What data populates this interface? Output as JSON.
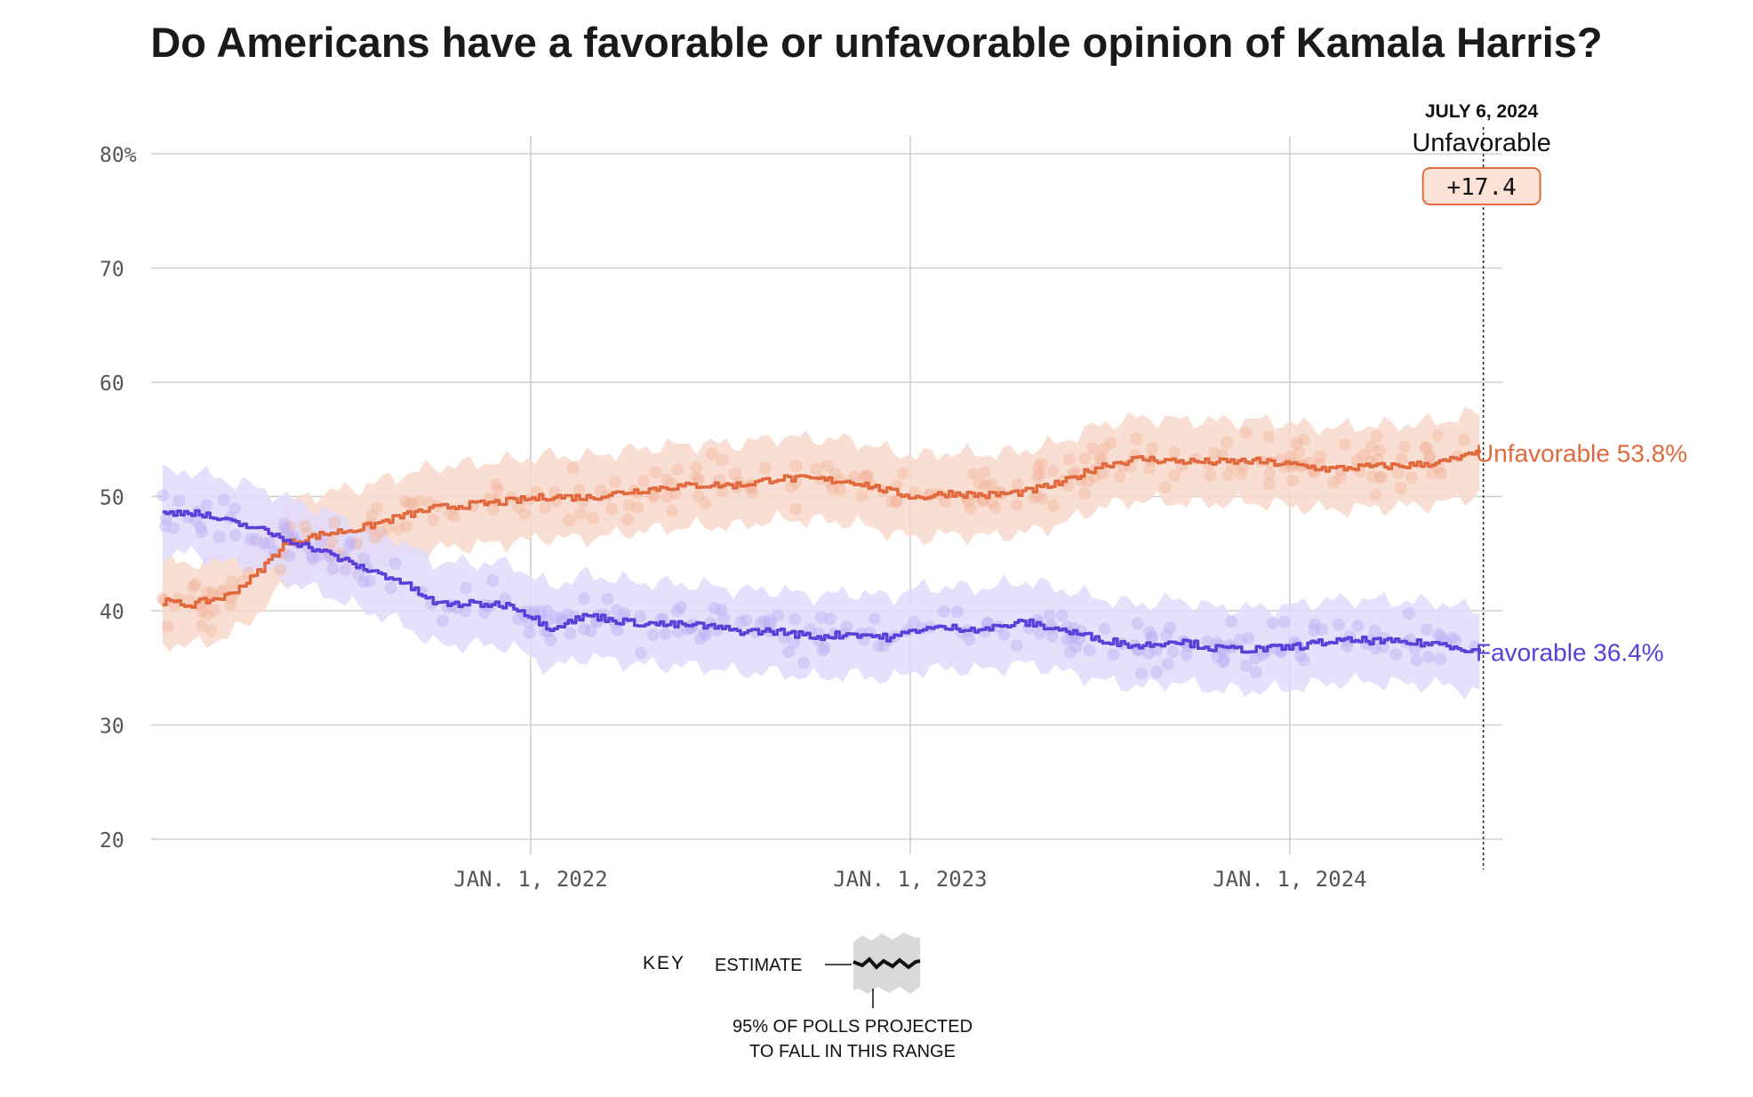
{
  "chart_data": {
    "type": "line",
    "title": "Do Americans have a favorable or unfavorable opinion of Kamala Harris?",
    "ylim": [
      20,
      80
    ],
    "yticks": [
      {
        "value": 80,
        "label": "80%"
      },
      {
        "value": 70,
        "label": "70"
      },
      {
        "value": 60,
        "label": "60"
      },
      {
        "value": 50,
        "label": "50"
      },
      {
        "value": 40,
        "label": "40"
      },
      {
        "value": 30,
        "label": "30"
      },
      {
        "value": 20,
        "label": "20"
      }
    ],
    "xlim": [
      2021.0,
      2024.56
    ],
    "xticks": [
      {
        "value": 2022.0,
        "label": "JAN. 1, 2022"
      },
      {
        "value": 2023.0,
        "label": "JAN. 1, 2023"
      },
      {
        "value": 2024.0,
        "label": "JAN. 1, 2024"
      }
    ],
    "series": [
      {
        "name": "Unfavorable",
        "color": "#e06a3d",
        "band_color": "#f8d9cb",
        "dot_color": "#f2b69c",
        "end_label": "Unfavorable 53.8%",
        "x": [
          2021.03,
          2021.1,
          2021.2,
          2021.27,
          2021.35,
          2021.45,
          2021.55,
          2021.65,
          2021.75,
          2021.85,
          2021.95,
          2022.05,
          2022.15,
          2022.25,
          2022.35,
          2022.45,
          2022.55,
          2022.65,
          2022.75,
          2022.85,
          2022.95,
          2023.02,
          2023.1,
          2023.2,
          2023.3,
          2023.4,
          2023.5,
          2023.6,
          2023.7,
          2023.8,
          2023.9,
          2024.0,
          2024.1,
          2024.2,
          2024.3,
          2024.4,
          2024.5
        ],
        "y": [
          40.8,
          40.5,
          41.3,
          43.0,
          45.8,
          46.7,
          47.2,
          48.2,
          49.0,
          49.3,
          49.6,
          50.0,
          49.9,
          50.4,
          50.8,
          51.0,
          51.0,
          51.6,
          51.5,
          51.3,
          50.4,
          49.9,
          50.3,
          50.1,
          50.4,
          51.2,
          52.7,
          53.3,
          53.1,
          53.0,
          53.1,
          52.8,
          52.4,
          52.6,
          52.7,
          53.0,
          53.8
        ]
      },
      {
        "name": "Favorable",
        "color": "#5a3fd8",
        "band_color": "#e1dbfb",
        "dot_color": "#bdb0f5",
        "end_label": "Favorable 36.4%",
        "x": [
          2021.03,
          2021.1,
          2021.2,
          2021.27,
          2021.35,
          2021.45,
          2021.55,
          2021.65,
          2021.75,
          2021.85,
          2021.95,
          2022.05,
          2022.15,
          2022.25,
          2022.35,
          2022.45,
          2022.55,
          2022.65,
          2022.75,
          2022.85,
          2022.95,
          2023.02,
          2023.1,
          2023.2,
          2023.3,
          2023.4,
          2023.5,
          2023.6,
          2023.7,
          2023.8,
          2023.9,
          2024.0,
          2024.1,
          2024.2,
          2024.3,
          2024.4,
          2024.5
        ],
        "y": [
          48.5,
          48.7,
          47.8,
          47.3,
          46.3,
          45.2,
          43.8,
          42.7,
          40.6,
          40.6,
          40.5,
          38.5,
          39.6,
          39.0,
          38.8,
          38.7,
          38.2,
          38.2,
          37.7,
          38.0,
          37.6,
          38.4,
          38.5,
          38.4,
          39.0,
          38.3,
          37.5,
          36.9,
          37.4,
          36.7,
          36.6,
          36.8,
          37.3,
          37.4,
          37.2,
          37.1,
          36.4
        ]
      }
    ],
    "annotation": {
      "date": "JULY 6, 2024",
      "x": 2024.51,
      "leader": "Unfavorable",
      "margin": "+17.4"
    },
    "key": {
      "label": "KEY",
      "estimate": "ESTIMATE",
      "range_line1": "95% OF POLLS PROJECTED",
      "range_line2": "TO FALL IN THIS RANGE"
    }
  }
}
